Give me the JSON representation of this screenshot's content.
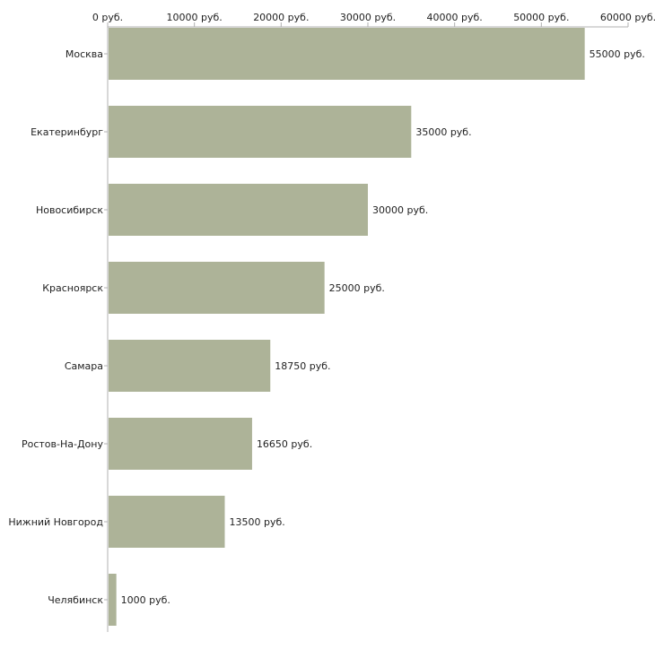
{
  "chart_data": {
    "type": "bar",
    "orientation": "horizontal",
    "title": "",
    "xlabel": "",
    "ylabel": "",
    "unit_suffix": " руб.",
    "xlim": [
      0,
      60000
    ],
    "ticks": [
      0,
      10000,
      20000,
      30000,
      40000,
      50000,
      60000
    ],
    "tick_labels": [
      "0 руб.",
      "10000 руб.",
      "20000 руб.",
      "30000 руб.",
      "40000 руб.",
      "50000 руб.",
      "60000 руб."
    ],
    "categories": [
      "Москва",
      "Екатеринбург",
      "Новосибирск",
      "Красноярск",
      "Самара",
      "Ростов-На-Дону",
      "Нижний Новгород",
      "Челябинск"
    ],
    "values": [
      55000,
      35000,
      30000,
      25000,
      18750,
      16650,
      13500,
      1000
    ],
    "value_labels": [
      "55000 руб.",
      "35000 руб.",
      "30000 руб.",
      "25000 руб.",
      "18750 руб.",
      "16650 руб.",
      "13500 руб.",
      "1000 руб."
    ],
    "legend": "none",
    "grid": false
  },
  "colors": {
    "bar": "#adb398",
    "axis": "#b0b0b0",
    "text": "#222222"
  }
}
